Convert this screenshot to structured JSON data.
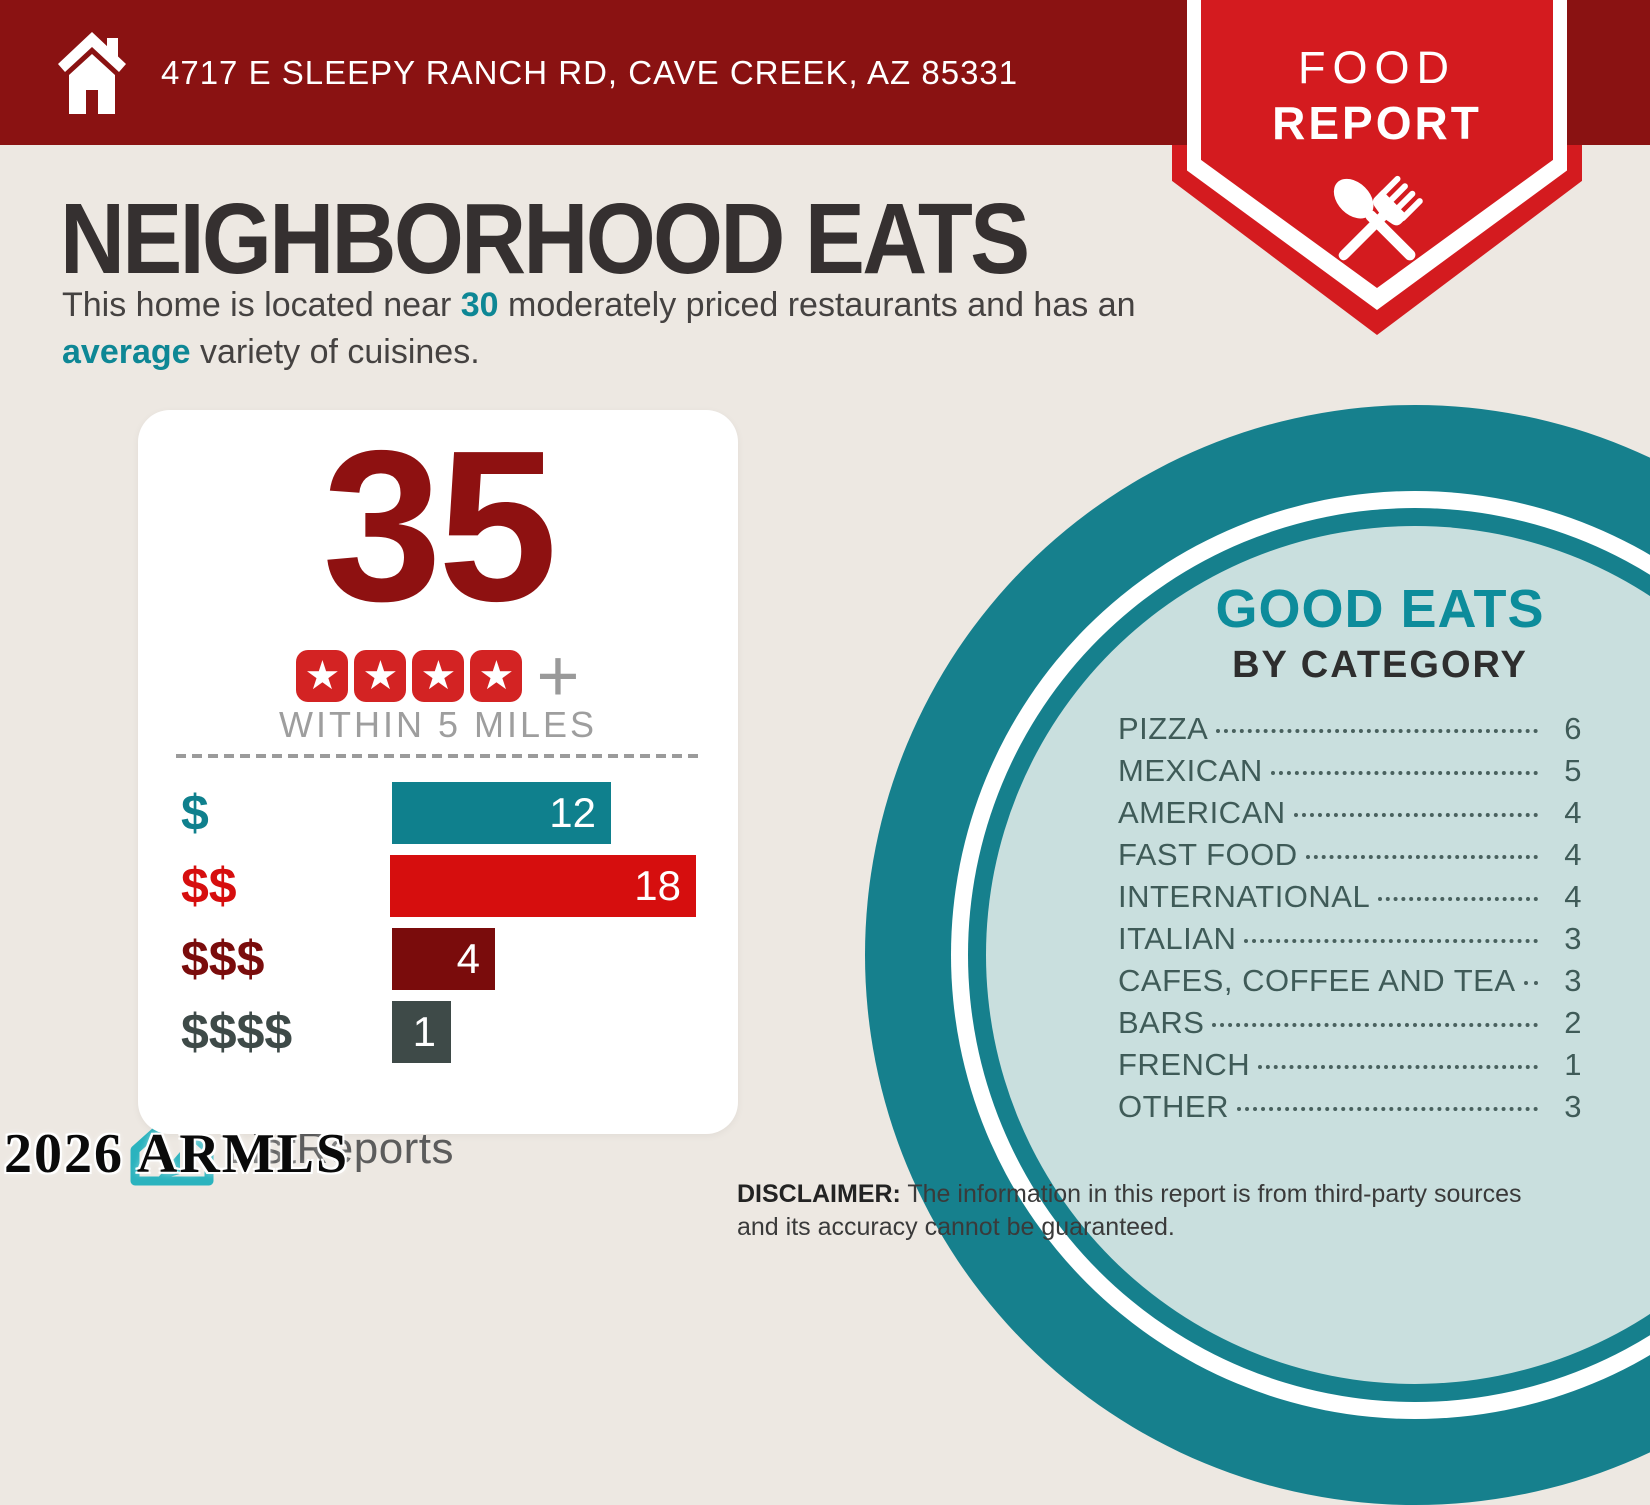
{
  "header": {
    "address": "4717 E SLEEPY RANCH RD, CAVE CREEK, AZ 85331"
  },
  "badge": {
    "line1": "FOOD",
    "line2": "REPORT"
  },
  "title": "NEIGHBORHOOD EATS",
  "intro": {
    "seg1": "This home is located near ",
    "count": "30",
    "seg2": " moderately priced restaurants and has an ",
    "highlight": "average",
    "seg3": " variety of cuisines."
  },
  "chart_data": [
    {
      "type": "bar",
      "orientation": "horizontal",
      "count_label": "35",
      "rating_stars": 4,
      "plus_label": "+",
      "note": "WITHIN 5 MILES",
      "categories": [
        "$",
        "$$",
        "$$$",
        "$$$$"
      ],
      "values": [
        12,
        18,
        4,
        1
      ],
      "colors": [
        "#0F808D",
        "#D60E0E",
        "#7A0C0C",
        "#3E4A48"
      ],
      "value_label_color": "#FFFFFF"
    },
    {
      "type": "table",
      "title": "GOOD EATS",
      "subtitle": "BY CATEGORY",
      "categories": [
        "PIZZA",
        "MEXICAN",
        "AMERICAN",
        "FAST FOOD",
        "INTERNATIONAL",
        "ITALIAN",
        "CAFES, COFFEE AND TEA",
        "BARS",
        "FRENCH",
        "OTHER"
      ],
      "values": [
        6,
        5,
        4,
        4,
        4,
        3,
        3,
        2,
        1,
        3
      ]
    }
  ],
  "footer": {
    "logo_text": "ListReports",
    "disclaimer_bold": "DISCLAIMER:",
    "disclaimer_text": " The information in this report is from third-party sources and its accuracy cannot be guaranteed."
  },
  "watermark": "2026 ARMLS",
  "colors": {
    "header_maroon": "#8A1212",
    "badge_red": "#D41B1F",
    "star_red": "#D32323",
    "teal": "#16808D",
    "teal_text": "#0D8C9B",
    "light_teal": "#C9DFDE",
    "background": "#EDE8E2",
    "dark_red_count": "#8E1111"
  }
}
